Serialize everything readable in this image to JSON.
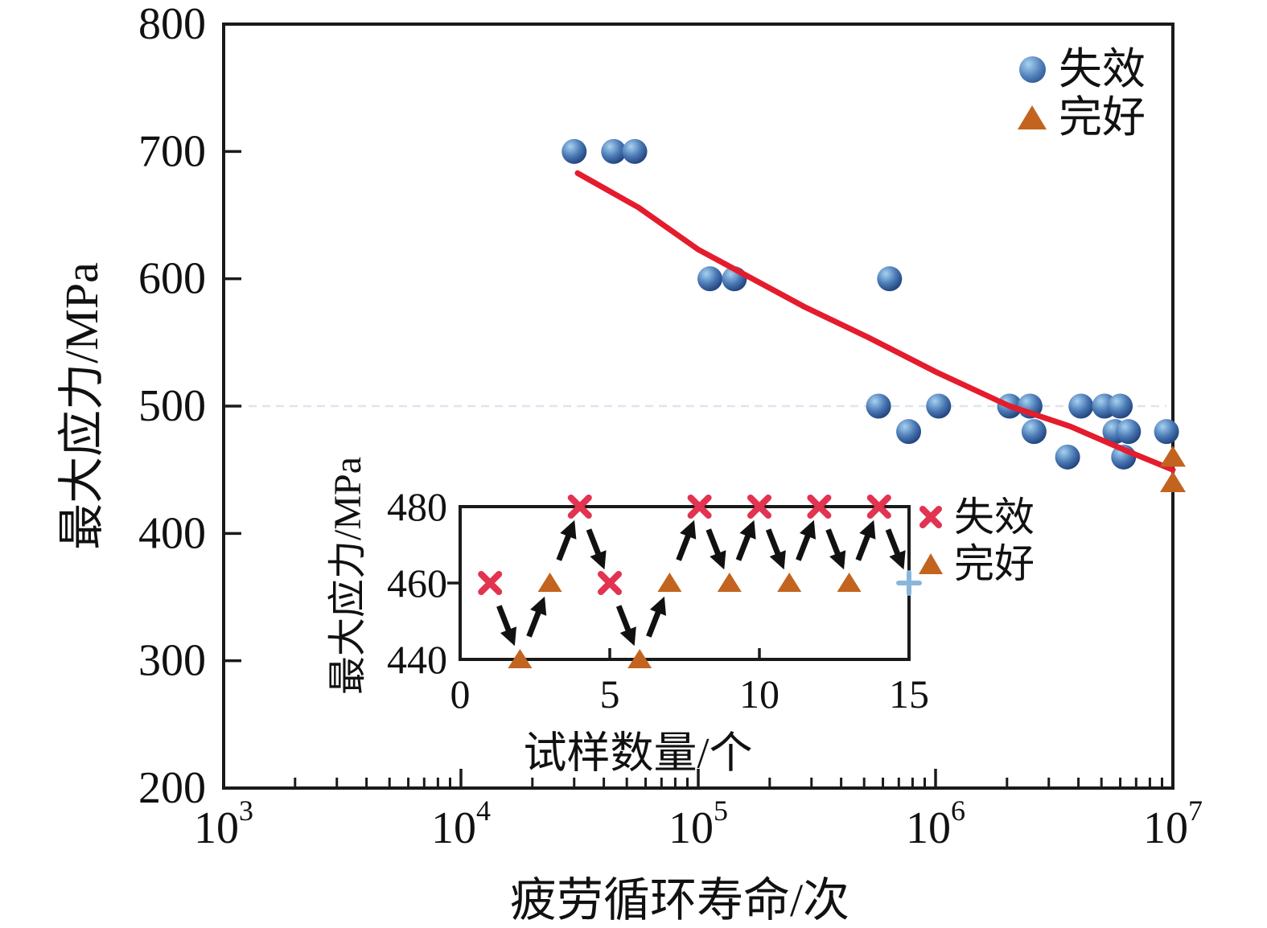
{
  "chart_data": [
    {
      "id": "main",
      "type": "scatter",
      "xlabel": "疲劳循环寿命/次",
      "ylabel": "最大应力/MPa",
      "x_scale": "log10",
      "xlim": [
        1000,
        10000000
      ],
      "ylim": [
        200,
        800
      ],
      "grid": false,
      "x_ticks": [
        {
          "value": 1000,
          "base": "10",
          "exp": "3"
        },
        {
          "value": 10000,
          "base": "10",
          "exp": "4"
        },
        {
          "value": 100000,
          "base": "10",
          "exp": "5"
        },
        {
          "value": 1000000,
          "base": "10",
          "exp": "6"
        },
        {
          "value": 10000000,
          "base": "10",
          "exp": "7"
        }
      ],
      "y_tick_labels": [
        200,
        300,
        400,
        500,
        600,
        700,
        800
      ],
      "y_tick_lines": [
        300,
        400,
        500,
        600,
        700
      ],
      "legend": {
        "failed": "失效",
        "intact": "完好",
        "position": "top-right"
      },
      "series": [
        {
          "name": "失效",
          "marker": "sphere",
          "points": [
            [
              30000,
              700
            ],
            [
              44000,
              700
            ],
            [
              54000,
              700
            ],
            [
              112000,
              600
            ],
            [
              142000,
              600
            ],
            [
              640000,
              600
            ],
            [
              575000,
              500
            ],
            [
              1030000,
              500
            ],
            [
              2050000,
              500
            ],
            [
              2500000,
              500
            ],
            [
              4100000,
              500
            ],
            [
              5150000,
              500
            ],
            [
              6000000,
              500
            ],
            [
              770000,
              480
            ],
            [
              2600000,
              480
            ],
            [
              5700000,
              480
            ],
            [
              6500000,
              480
            ],
            [
              9400000,
              480
            ],
            [
              3600000,
              460
            ],
            [
              6200000,
              460
            ]
          ]
        },
        {
          "name": "完好",
          "marker": "triangle",
          "points": [
            [
              10000000,
              460
            ],
            [
              10000000,
              440
            ]
          ]
        },
        {
          "name": "fit_curve",
          "marker": "line",
          "points": [
            [
              31000,
              683
            ],
            [
              56000,
              656
            ],
            [
              100000,
              623
            ],
            [
              280000,
              578
            ],
            [
              520000,
              554
            ],
            [
              1000000,
              527
            ],
            [
              2050000,
              500
            ],
            [
              3700000,
              484
            ],
            [
              6350000,
              465
            ],
            [
              10000000,
              450
            ]
          ]
        }
      ]
    },
    {
      "id": "inset",
      "type": "scatter",
      "xlabel": "试样数量/个",
      "ylabel": "最大应力/MPa",
      "xlim": [
        0,
        15
      ],
      "ylim": [
        440,
        480
      ],
      "grid": false,
      "x_tick_labels": [
        0,
        5,
        10,
        15
      ],
      "x_tick_lines": [
        5,
        10
      ],
      "y_tick_labels": [
        440,
        460,
        480
      ],
      "y_tick_lines": [
        460
      ],
      "legend": {
        "failed": "失效",
        "intact": "完好",
        "position": "right-of-box"
      },
      "arrows_between_consecutive_points": true,
      "points": [
        {
          "specimen": 1,
          "stress": 460,
          "status": "failed"
        },
        {
          "specimen": 2,
          "stress": 440,
          "status": "intact"
        },
        {
          "specimen": 3,
          "stress": 460,
          "status": "intact"
        },
        {
          "specimen": 4,
          "stress": 480,
          "status": "failed"
        },
        {
          "specimen": 5,
          "stress": 460,
          "status": "failed"
        },
        {
          "specimen": 6,
          "stress": 440,
          "status": "intact"
        },
        {
          "specimen": 7,
          "stress": 460,
          "status": "intact"
        },
        {
          "specimen": 8,
          "stress": 480,
          "status": "failed"
        },
        {
          "specimen": 9,
          "stress": 460,
          "status": "intact"
        },
        {
          "specimen": 10,
          "stress": 480,
          "status": "failed"
        },
        {
          "specimen": 11,
          "stress": 460,
          "status": "intact"
        },
        {
          "specimen": 12,
          "stress": 480,
          "status": "failed"
        },
        {
          "specimen": 13,
          "stress": 460,
          "status": "intact"
        },
        {
          "specimen": 14,
          "stress": 480,
          "status": "failed"
        },
        {
          "specimen": 15,
          "stress": 460,
          "status": "terminated"
        }
      ]
    }
  ],
  "colors": {
    "sphere_highlight": "#a6d2f0",
    "sphere_mid": "#4a79b5",
    "sphere_dark": "#1f3f78",
    "triangle": "#c2641f",
    "curve": "#e41c2d",
    "x_marker": "#e23350",
    "plus_marker": "#8ab6dc",
    "axis": "#1a1a1a",
    "faint_line": "#dde6ef"
  }
}
